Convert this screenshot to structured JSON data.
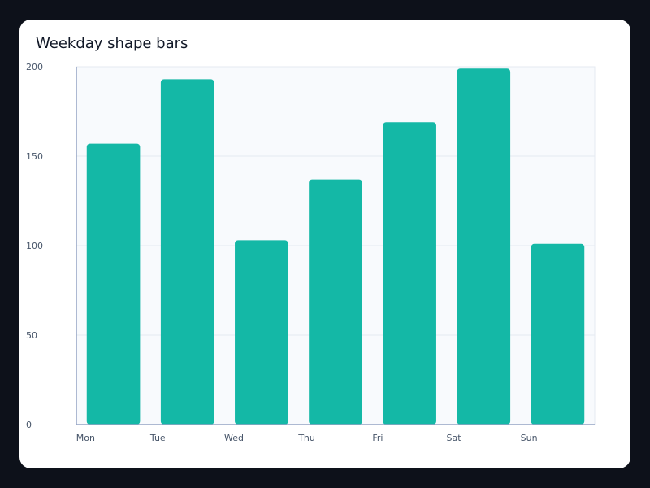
{
  "chart_data": {
    "type": "bar",
    "title": "Weekday shape bars",
    "xlabel": "",
    "ylabel": "",
    "categories": [
      "Mon",
      "Tue",
      "Wed",
      "Thu",
      "Fri",
      "Sat",
      "Sun"
    ],
    "values": [
      157,
      193,
      103,
      137,
      169,
      199,
      101
    ],
    "ylim": [
      0,
      200
    ],
    "yticks": [
      0,
      50,
      100,
      150,
      200
    ],
    "grid": true,
    "legend": "none",
    "bar_color": "#14b8a6",
    "plot_background": "#f8fafd",
    "grid_color": "#e5eaf1",
    "axis_color": "#94a3c4"
  }
}
